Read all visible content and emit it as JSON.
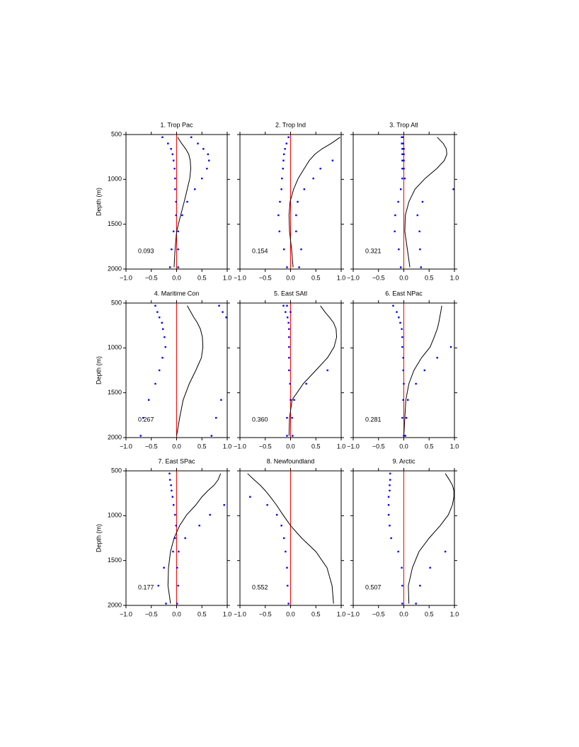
{
  "chart_data": [
    {
      "type": "line",
      "title": "1. Trop Pac",
      "ylabel": "Depth (m)",
      "show_ytick_labels": true,
      "annotation": "0.093",
      "y": [
        530,
        600,
        660,
        720,
        790,
        880,
        990,
        1110,
        1250,
        1400,
        1580,
        1780,
        1980
      ],
      "series": [
        {
          "type": "line",
          "color": "#000000",
          "values": [
            0.02,
            0.1,
            0.18,
            0.24,
            0.27,
            0.28,
            0.26,
            0.21,
            0.15,
            0.08,
            0.0,
            -0.03,
            -0.05
          ]
        },
        {
          "type": "scatter",
          "color": "#0000ff",
          "values": [
            -0.28,
            -0.17,
            -0.11,
            -0.08,
            -0.06,
            -0.04,
            -0.03,
            -0.03,
            -0.01,
            -0.01,
            -0.06,
            -0.1,
            -0.13
          ]
        },
        {
          "type": "scatter",
          "color": "#0000ff",
          "values": [
            0.29,
            0.42,
            0.53,
            0.62,
            0.64,
            0.6,
            0.5,
            0.36,
            0.21,
            0.11,
            0.03,
            0.03,
            0.03
          ]
        }
      ],
      "xlim": [
        -1,
        1
      ],
      "xticks": [
        {
          "value": -1,
          "label": "−1.0"
        },
        {
          "value": -0.5,
          "label": "−0.5"
        },
        {
          "value": 0,
          "label": "0.0"
        },
        {
          "value": 0.5,
          "label": "0.5"
        },
        {
          "value": 1,
          "label": "1.0"
        }
      ],
      "ylim": [
        500,
        2000
      ],
      "yticks": [
        500,
        1000,
        1500,
        2000
      ],
      "y_inverted": true,
      "reference_line": 0,
      "reference_color": "#ff0000"
    },
    {
      "type": "line",
      "title": "2. Trop Ind",
      "show_ytick_labels": false,
      "annotation": "0.154",
      "y": [
        530,
        600,
        660,
        720,
        790,
        880,
        990,
        1110,
        1250,
        1400,
        1580,
        1780,
        1980
      ],
      "series": [
        {
          "type": "line",
          "color": "#000000",
          "values": [
            0.98,
            0.8,
            0.62,
            0.48,
            0.37,
            0.27,
            0.15,
            0.06,
            -0.01,
            -0.03,
            -0.02,
            0.02,
            0.05
          ]
        },
        {
          "type": "scatter",
          "color": "#0000ff",
          "values": [
            -0.04,
            -0.08,
            -0.11,
            -0.13,
            -0.14,
            -0.15,
            -0.17,
            -0.18,
            -0.21,
            -0.24,
            -0.22,
            -0.13,
            -0.07
          ]
        },
        {
          "type": "scatter",
          "color": "#0000ff",
          "values": [
            null,
            null,
            null,
            null,
            0.83,
            0.59,
            0.45,
            0.27,
            0.14,
            0.11,
            0.11,
            0.21,
            0.17
          ]
        }
      ],
      "xlim": [
        -1,
        1
      ],
      "xticks": [
        {
          "value": -1,
          "label": "−1.0"
        },
        {
          "value": -0.5,
          "label": "−0.5"
        },
        {
          "value": 0,
          "label": "0.0"
        },
        {
          "value": 0.5,
          "label": "0.5"
        },
        {
          "value": 1,
          "label": "1.0"
        }
      ],
      "ylim": [
        500,
        2000
      ],
      "yticks": [
        500,
        1000,
        1500,
        2000
      ],
      "y_inverted": true,
      "reference_line": 0,
      "reference_color": "#ff0000"
    },
    {
      "type": "line",
      "title": "3. Trop Atl",
      "show_ytick_labels": false,
      "annotation": "0.321",
      "y": [
        530,
        600,
        660,
        720,
        790,
        880,
        990,
        1110,
        1250,
        1400,
        1580,
        1780,
        1980
      ],
      "series": [
        {
          "type": "line",
          "color": "#000000",
          "values": [
            0.66,
            0.78,
            0.84,
            0.85,
            0.8,
            0.65,
            0.42,
            0.22,
            0.1,
            0.03,
            0.02,
            0.07,
            0.12
          ]
        },
        {
          "type": "scatter",
          "color": "#0000ff",
          "values": [
            -0.04,
            -0.04,
            -0.03,
            -0.03,
            -0.03,
            -0.03,
            -0.03,
            -0.06,
            -0.11,
            -0.17,
            -0.18,
            -0.1,
            -0.06
          ]
        },
        {
          "type": "scatter",
          "color": "#0000ff",
          "values": [
            -0.02,
            -0.01,
            0,
            0,
            0,
            0,
            0.02,
            0.98,
            0.37,
            0.27,
            0.31,
            0.32,
            0.34
          ]
        }
      ],
      "xlim": [
        -1,
        1
      ],
      "xticks": [
        {
          "value": -1,
          "label": "−1.0"
        },
        {
          "value": -0.5,
          "label": "−0.5"
        },
        {
          "value": 0,
          "label": "0.0"
        },
        {
          "value": 0.5,
          "label": "0.5"
        },
        {
          "value": 1,
          "label": "1.0"
        }
      ],
      "ylim": [
        500,
        2000
      ],
      "yticks": [
        500,
        1000,
        1500,
        2000
      ],
      "y_inverted": true,
      "reference_line": 0,
      "reference_color": "#ff0000"
    },
    {
      "type": "line",
      "title": "4. Maritime Con",
      "ylabel": "Depth (m)",
      "show_ytick_labels": true,
      "annotation": "0.267",
      "y": [
        530,
        600,
        660,
        720,
        790,
        880,
        990,
        1110,
        1250,
        1400,
        1580,
        1780,
        1980
      ],
      "series": [
        {
          "type": "line",
          "color": "#000000",
          "values": [
            0.21,
            0.28,
            0.34,
            0.41,
            0.47,
            0.51,
            0.52,
            0.49,
            0.38,
            0.25,
            0.13,
            0.06,
            0.0
          ]
        },
        {
          "type": "scatter",
          "color": "#0000ff",
          "values": [
            -0.42,
            -0.38,
            -0.34,
            -0.29,
            -0.27,
            -0.24,
            -0.22,
            -0.28,
            -0.34,
            -0.42,
            -0.55,
            -0.66,
            -0.71
          ]
        },
        {
          "type": "scatter",
          "color": "#0000ff",
          "values": [
            0.84,
            0.91,
            0.98,
            null,
            null,
            null,
            null,
            null,
            null,
            null,
            0.88,
            0.78,
            0.69
          ]
        }
      ],
      "xlim": [
        -1,
        1
      ],
      "xticks": [
        {
          "value": -1,
          "label": "−1.0"
        },
        {
          "value": -0.5,
          "label": "−0.5"
        },
        {
          "value": 0,
          "label": "0.0"
        },
        {
          "value": 0.5,
          "label": "0.5"
        },
        {
          "value": 1,
          "label": "1.0"
        }
      ],
      "ylim": [
        500,
        2000
      ],
      "yticks": [
        500,
        1000,
        1500,
        2000
      ],
      "y_inverted": true,
      "reference_line": 0,
      "reference_color": "#ff0000"
    },
    {
      "type": "line",
      "title": "5. East SAtl",
      "show_ytick_labels": false,
      "annotation": "0.360",
      "y": [
        530,
        600,
        660,
        720,
        790,
        880,
        990,
        1110,
        1250,
        1400,
        1580,
        1780,
        1980
      ],
      "series": [
        {
          "type": "line",
          "color": "#000000",
          "values": [
            0.59,
            0.68,
            0.77,
            0.85,
            0.9,
            0.91,
            0.86,
            0.73,
            0.5,
            0.25,
            0.03,
            -0.02,
            -0.03
          ]
        },
        {
          "type": "scatter",
          "color": "#0000ff",
          "values": [
            -0.14,
            -0.1,
            -0.06,
            -0.04,
            -0.03,
            -0.03,
            -0.03,
            -0.03,
            -0.03,
            -0.01,
            0,
            -0.07,
            -0.07
          ]
        },
        {
          "type": "scatter",
          "color": "#0000ff",
          "values": [
            -0.07,
            0.0,
            null,
            null,
            null,
            null,
            null,
            null,
            0.73,
            0.31,
            0.07,
            0.03,
            0.04
          ]
        }
      ],
      "xlim": [
        -1,
        1
      ],
      "xticks": [
        {
          "value": -1,
          "label": "−1.0"
        },
        {
          "value": -0.5,
          "label": "−0.5"
        },
        {
          "value": 0,
          "label": "0.0"
        },
        {
          "value": 0.5,
          "label": "0.5"
        },
        {
          "value": 1,
          "label": "1.0"
        }
      ],
      "ylim": [
        500,
        2000
      ],
      "yticks": [
        500,
        1000,
        1500,
        2000
      ],
      "y_inverted": true,
      "reference_line": 0,
      "reference_color": "#ff0000"
    },
    {
      "type": "line",
      "title": "6. East NPac",
      "show_ytick_labels": false,
      "annotation": "0.281",
      "y": [
        530,
        600,
        660,
        720,
        790,
        880,
        990,
        1110,
        1250,
        1400,
        1580,
        1780,
        1980
      ],
      "series": [
        {
          "type": "line",
          "color": "#000000",
          "values": [
            0.75,
            0.73,
            0.71,
            0.69,
            0.66,
            0.6,
            0.52,
            0.35,
            0.2,
            0.1,
            0.04,
            0.02,
            0.0
          ]
        },
        {
          "type": "scatter",
          "color": "#0000ff",
          "values": [
            -0.21,
            -0.14,
            -0.1,
            -0.07,
            -0.04,
            -0.03,
            -0.03,
            -0.01,
            -0.01,
            0,
            -0.01,
            -0.03,
            0
          ]
        },
        {
          "type": "scatter",
          "color": "#0000ff",
          "values": [
            null,
            null,
            null,
            null,
            null,
            null,
            0.93,
            0.66,
            0.41,
            0.24,
            0.08,
            0.05,
            0.03
          ]
        }
      ],
      "xlim": [
        -1,
        1
      ],
      "xticks": [
        {
          "value": -1,
          "label": "−1.0"
        },
        {
          "value": -0.5,
          "label": "−0.5"
        },
        {
          "value": 0,
          "label": "0.0"
        },
        {
          "value": 0.5,
          "label": "0.5"
        },
        {
          "value": 1,
          "label": "1.0"
        }
      ],
      "ylim": [
        500,
        2000
      ],
      "yticks": [
        500,
        1000,
        1500,
        2000
      ],
      "y_inverted": true,
      "reference_line": 0,
      "reference_color": "#ff0000"
    },
    {
      "type": "line",
      "title": "7. East SPac",
      "ylabel": "Depth (m)",
      "show_ytick_labels": true,
      "annotation": "0.177",
      "y": [
        530,
        600,
        660,
        720,
        790,
        880,
        990,
        1110,
        1250,
        1400,
        1580,
        1780,
        1980
      ],
      "series": [
        {
          "type": "line",
          "color": "#000000",
          "values": [
            0.87,
            0.82,
            0.74,
            0.62,
            0.5,
            0.38,
            0.2,
            0.06,
            -0.05,
            -0.12,
            -0.16,
            -0.17,
            -0.12
          ]
        },
        {
          "type": "scatter",
          "color": "#0000ff",
          "values": [
            -0.14,
            -0.13,
            -0.11,
            -0.1,
            -0.08,
            -0.06,
            -0.03,
            -0.01,
            -0.03,
            -0.07,
            -0.25,
            -0.36,
            -0.21
          ]
        },
        {
          "type": "scatter",
          "color": "#0000ff",
          "values": [
            null,
            null,
            null,
            null,
            null,
            0.94,
            0.66,
            0.45,
            0.17,
            0.04,
            0.01,
            0.03,
            0.01
          ]
        }
      ],
      "xlim": [
        -1,
        1
      ],
      "xticks": [
        {
          "value": -1,
          "label": "−1.0"
        },
        {
          "value": -0.5,
          "label": "−0.5"
        },
        {
          "value": 0,
          "label": "0.0"
        },
        {
          "value": 0.5,
          "label": "0.5"
        },
        {
          "value": 1,
          "label": "1.0"
        }
      ],
      "ylim": [
        500,
        2000
      ],
      "yticks": [
        500,
        1000,
        1500,
        2000
      ],
      "y_inverted": true,
      "reference_line": 0,
      "reference_color": "#ff0000"
    },
    {
      "type": "line",
      "title": "8. Newfoundland",
      "show_ytick_labels": false,
      "annotation": "0.552",
      "y": [
        530,
        600,
        660,
        720,
        790,
        880,
        990,
        1110,
        1250,
        1400,
        1580,
        1780,
        1980
      ],
      "series": [
        {
          "type": "line",
          "color": "#000000",
          "values": [
            -0.85,
            -0.72,
            -0.6,
            -0.5,
            -0.4,
            -0.28,
            -0.15,
            0.0,
            0.22,
            0.5,
            0.72,
            0.82,
            0.85
          ]
        },
        {
          "type": "scatter",
          "color": "#0000ff",
          "values": [
            null,
            null,
            null,
            null,
            -0.8,
            -0.46,
            -0.27,
            -0.18,
            -0.13,
            -0.1,
            -0.07,
            -0.06,
            -0.04
          ]
        }
      ],
      "xlim": [
        -1,
        1
      ],
      "xticks": [
        {
          "value": -1,
          "label": "−1.0"
        },
        {
          "value": -0.5,
          "label": "−0.5"
        },
        {
          "value": 0,
          "label": "0.0"
        },
        {
          "value": 0.5,
          "label": "0.5"
        },
        {
          "value": 1,
          "label": "1.0"
        }
      ],
      "ylim": [
        500,
        2000
      ],
      "yticks": [
        500,
        1000,
        1500,
        2000
      ],
      "y_inverted": true,
      "reference_line": 0,
      "reference_color": "#ff0000"
    },
    {
      "type": "line",
      "title": "9. Arctic",
      "show_ytick_labels": false,
      "annotation": "0.507",
      "y": [
        530,
        600,
        660,
        720,
        790,
        880,
        990,
        1110,
        1250,
        1400,
        1580,
        1780,
        1980
      ],
      "series": [
        {
          "type": "line",
          "color": "#000000",
          "values": [
            0.82,
            0.9,
            0.96,
            0.99,
            0.99,
            0.96,
            0.88,
            0.72,
            0.5,
            0.3,
            0.17,
            0.09,
            0.1
          ]
        },
        {
          "type": "scatter",
          "color": "#0000ff",
          "values": [
            -0.27,
            -0.27,
            -0.28,
            -0.28,
            -0.3,
            -0.3,
            -0.3,
            -0.28,
            -0.25,
            -0.11,
            -0.04,
            -0.03,
            -0.03
          ]
        },
        {
          "type": "scatter",
          "color": "#0000ff",
          "values": [
            null,
            null,
            null,
            null,
            null,
            null,
            null,
            null,
            null,
            0.82,
            0.52,
            0.32,
            0.24
          ]
        }
      ],
      "xlim": [
        -1,
        1
      ],
      "xticks": [
        {
          "value": -1,
          "label": "−1.0"
        },
        {
          "value": -0.5,
          "label": "−0.5"
        },
        {
          "value": 0,
          "label": "0.0"
        },
        {
          "value": 0.5,
          "label": "0.5"
        },
        {
          "value": 1,
          "label": "1.0"
        }
      ],
      "ylim": [
        500,
        2000
      ],
      "yticks": [
        500,
        1000,
        1500,
        2000
      ],
      "y_inverted": true,
      "reference_line": 0,
      "reference_color": "#ff0000"
    }
  ]
}
